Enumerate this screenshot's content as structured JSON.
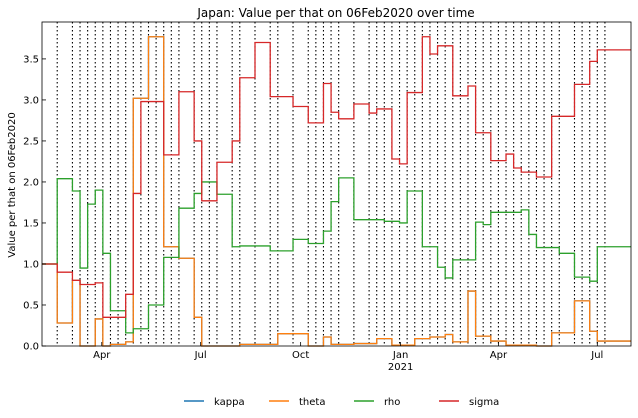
{
  "chart_data": {
    "type": "line",
    "title": "Japan: Value per that on 06Feb2020 over time",
    "xlabel": "",
    "ylabel": "Value per that on 06Feb2020",
    "xlim": [
      "2020-02-06",
      "2021-08-01"
    ],
    "ylim": [
      0,
      3.95
    ],
    "y_ticks": [
      0.0,
      0.5,
      1.0,
      1.5,
      2.0,
      2.5,
      3.0,
      3.5
    ],
    "y_tick_labels": [
      "0.0",
      "0.5",
      "1.0",
      "1.5",
      "2.0",
      "2.5",
      "3.0",
      "3.5"
    ],
    "x_ticks": [
      "2020-04-01",
      "2020-07-01",
      "2020-10-01",
      "2021-01-01",
      "2021-04-01",
      "2021-07-01"
    ],
    "x_tick_labels": [
      "Apr",
      "Jul",
      "Oct",
      "Jan",
      "Apr",
      "Jul"
    ],
    "x_tick_sublabels": [
      "",
      "",
      "",
      "2021",
      "",
      ""
    ],
    "grid": false,
    "step": true,
    "legend_position": "bottom-center",
    "vertical_lines": [
      "2020-02-20",
      "2020-03-05",
      "2020-03-12",
      "2020-03-19",
      "2020-03-26",
      "2020-04-02",
      "2020-04-09",
      "2020-04-16",
      "2020-04-23",
      "2020-04-30",
      "2020-05-07",
      "2020-05-14",
      "2020-05-21",
      "2020-05-28",
      "2020-06-04",
      "2020-06-11",
      "2020-06-25",
      "2020-07-02",
      "2020-07-09",
      "2020-07-16",
      "2020-07-30",
      "2020-08-06",
      "2020-08-20",
      "2020-09-03",
      "2020-09-10",
      "2020-09-24",
      "2020-10-08",
      "2020-10-15",
      "2020-10-22",
      "2020-10-29",
      "2020-11-05",
      "2020-11-19",
      "2020-12-03",
      "2020-12-10",
      "2020-12-17",
      "2020-12-24",
      "2020-12-31",
      "2021-01-07",
      "2021-01-14",
      "2021-01-21",
      "2021-01-28",
      "2021-02-04",
      "2021-02-11",
      "2021-02-18",
      "2021-02-25",
      "2021-03-04",
      "2021-03-11",
      "2021-03-18",
      "2021-03-25",
      "2021-04-01",
      "2021-04-08",
      "2021-04-15",
      "2021-04-22",
      "2021-04-29",
      "2021-05-06",
      "2021-05-13",
      "2021-05-20",
      "2021-05-27",
      "2021-06-10",
      "2021-06-17",
      "2021-06-24",
      "2021-07-01",
      "2021-07-08"
    ],
    "series": [
      {
        "name": "kappa",
        "color": "#1f77b4",
        "x": [
          "2020-02-06",
          "2020-02-20",
          "2020-03-05",
          "2020-03-12",
          "2020-03-26",
          "2020-04-02",
          "2020-04-09",
          "2020-04-23",
          "2020-04-30",
          "2020-05-14",
          "2020-05-28",
          "2020-06-11",
          "2020-06-25",
          "2020-07-02",
          "2020-07-16",
          "2020-08-06",
          "2020-09-10",
          "2020-10-08",
          "2020-10-22",
          "2020-10-29",
          "2020-11-19",
          "2020-12-10",
          "2020-12-24",
          "2021-01-14",
          "2021-01-28",
          "2021-02-11",
          "2021-02-18",
          "2021-03-04",
          "2021-03-11",
          "2021-03-25",
          "2021-04-08",
          "2021-04-22",
          "2021-05-06",
          "2021-05-20",
          "2021-05-27",
          "2021-06-10",
          "2021-06-24",
          "2021-07-01",
          "2021-08-01"
        ],
        "y": [
          1.0,
          0.28,
          0.8,
          0.0,
          0.33,
          0.0,
          0.02,
          0.05,
          3.02,
          3.77,
          1.21,
          1.07,
          0.35,
          0.0,
          0.0,
          0.02,
          0.15,
          0.0,
          0.11,
          0.02,
          0.03,
          0.09,
          0.01,
          0.09,
          0.11,
          0.14,
          0.05,
          0.67,
          0.12,
          0.06,
          0.01,
          0.01,
          0.0,
          0.16,
          0.16,
          0.55,
          0.18,
          0.06,
          0.06
        ]
      },
      {
        "name": "theta",
        "color": "#ff7f0e",
        "x": [
          "2020-02-06",
          "2020-02-20",
          "2020-03-05",
          "2020-03-12",
          "2020-03-26",
          "2020-04-02",
          "2020-04-09",
          "2020-04-23",
          "2020-04-30",
          "2020-05-14",
          "2020-05-28",
          "2020-06-11",
          "2020-06-25",
          "2020-07-02",
          "2020-07-16",
          "2020-08-06",
          "2020-09-10",
          "2020-10-08",
          "2020-10-22",
          "2020-10-29",
          "2020-11-19",
          "2020-12-10",
          "2020-12-24",
          "2021-01-14",
          "2021-01-28",
          "2021-02-11",
          "2021-02-18",
          "2021-03-04",
          "2021-03-11",
          "2021-03-25",
          "2021-04-08",
          "2021-04-22",
          "2021-05-06",
          "2021-05-20",
          "2021-05-27",
          "2021-06-10",
          "2021-06-24",
          "2021-07-01",
          "2021-08-01"
        ],
        "y": [
          1.0,
          0.28,
          0.8,
          0.0,
          0.33,
          0.0,
          0.02,
          0.05,
          3.02,
          3.77,
          1.21,
          1.07,
          0.35,
          0.0,
          0.0,
          0.02,
          0.15,
          0.0,
          0.11,
          0.02,
          0.03,
          0.09,
          0.01,
          0.09,
          0.11,
          0.14,
          0.05,
          0.67,
          0.12,
          0.06,
          0.01,
          0.01,
          0.0,
          0.16,
          0.16,
          0.55,
          0.18,
          0.06,
          0.06
        ]
      },
      {
        "name": "rho",
        "color": "#2ca02c",
        "x": [
          "2020-02-06",
          "2020-02-20",
          "2020-03-05",
          "2020-03-12",
          "2020-03-19",
          "2020-03-26",
          "2020-04-02",
          "2020-04-09",
          "2020-04-23",
          "2020-04-30",
          "2020-05-14",
          "2020-05-28",
          "2020-06-11",
          "2020-06-25",
          "2020-07-02",
          "2020-07-16",
          "2020-07-30",
          "2020-08-06",
          "2020-08-20",
          "2020-09-03",
          "2020-09-24",
          "2020-10-08",
          "2020-10-22",
          "2020-10-29",
          "2020-11-05",
          "2020-11-19",
          "2020-12-03",
          "2020-12-17",
          "2020-12-31",
          "2021-01-07",
          "2021-01-21",
          "2021-01-28",
          "2021-02-04",
          "2021-02-11",
          "2021-02-18",
          "2021-03-04",
          "2021-03-11",
          "2021-03-18",
          "2021-03-25",
          "2021-04-08",
          "2021-04-22",
          "2021-04-29",
          "2021-05-06",
          "2021-05-13",
          "2021-05-27",
          "2021-06-10",
          "2021-06-24",
          "2021-07-01",
          "2021-08-01"
        ],
        "y": [
          1.0,
          2.04,
          1.89,
          0.95,
          1.73,
          1.9,
          1.13,
          0.43,
          0.16,
          0.21,
          0.5,
          1.08,
          1.68,
          1.86,
          2.0,
          1.85,
          1.21,
          1.22,
          1.22,
          1.16,
          1.3,
          1.25,
          1.4,
          1.76,
          2.05,
          1.54,
          1.54,
          1.52,
          1.5,
          1.89,
          1.21,
          1.21,
          0.96,
          0.83,
          1.05,
          1.05,
          1.51,
          1.48,
          1.63,
          1.63,
          1.66,
          1.36,
          1.2,
          1.2,
          1.13,
          0.84,
          0.79,
          1.21,
          1.21
        ]
      },
      {
        "name": "sigma",
        "color": "#d62728",
        "x": [
          "2020-02-06",
          "2020-02-20",
          "2020-03-05",
          "2020-03-12",
          "2020-03-26",
          "2020-04-02",
          "2020-04-09",
          "2020-04-23",
          "2020-04-30",
          "2020-05-07",
          "2020-05-14",
          "2020-05-28",
          "2020-06-04",
          "2020-06-11",
          "2020-06-25",
          "2020-07-02",
          "2020-07-09",
          "2020-07-16",
          "2020-07-30",
          "2020-08-06",
          "2020-08-13",
          "2020-08-20",
          "2020-09-03",
          "2020-09-10",
          "2020-09-24",
          "2020-10-01",
          "2020-10-08",
          "2020-10-22",
          "2020-10-29",
          "2020-11-05",
          "2020-11-19",
          "2020-12-03",
          "2020-12-10",
          "2020-12-24",
          "2020-12-31",
          "2021-01-07",
          "2021-01-21",
          "2021-01-28",
          "2021-02-04",
          "2021-02-11",
          "2021-02-18",
          "2021-03-04",
          "2021-03-11",
          "2021-03-18",
          "2021-03-25",
          "2021-04-08",
          "2021-04-15",
          "2021-04-22",
          "2021-05-06",
          "2021-05-13",
          "2021-05-20",
          "2021-05-27",
          "2021-06-10",
          "2021-06-17",
          "2021-06-24",
          "2021-07-01",
          "2021-08-01"
        ],
        "y": [
          1.0,
          0.9,
          0.8,
          0.75,
          0.77,
          0.35,
          0.35,
          0.63,
          1.86,
          2.98,
          2.98,
          2.33,
          2.33,
          3.1,
          2.5,
          1.77,
          1.77,
          2.24,
          2.5,
          3.27,
          3.27,
          3.7,
          3.04,
          3.04,
          2.92,
          2.92,
          2.72,
          3.2,
          2.85,
          2.77,
          2.95,
          2.84,
          2.89,
          2.28,
          2.22,
          3.09,
          3.77,
          3.56,
          3.66,
          3.66,
          3.05,
          3.17,
          2.6,
          2.6,
          2.26,
          2.34,
          2.17,
          2.12,
          2.06,
          2.06,
          2.8,
          2.8,
          3.19,
          3.19,
          3.47,
          3.61,
          3.61
        ]
      }
    ]
  }
}
